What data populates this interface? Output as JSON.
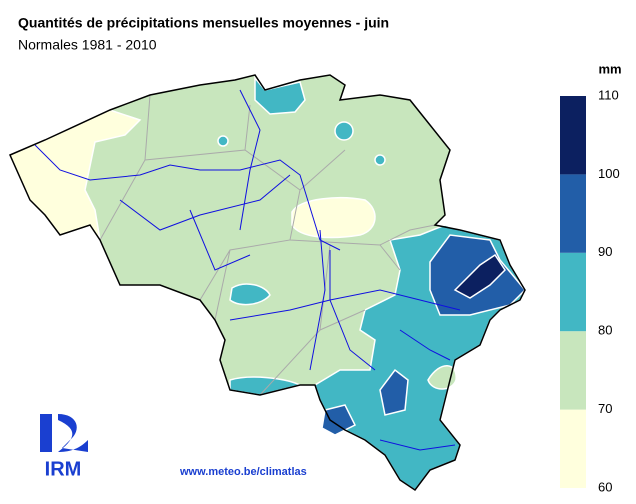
{
  "header": {
    "title": "Quantités de précipitations mensuelles moyennes - juin",
    "subtitle": "Normales 1981 - 2010"
  },
  "legend": {
    "unit": "mm",
    "ticks": [
      60,
      70,
      80,
      90,
      100,
      110
    ],
    "colors": [
      "#ffffdd",
      "#c8e6bd",
      "#42b7c4",
      "#225ea8",
      "#0c2060"
    ]
  },
  "footer": {
    "logo": "IRM",
    "url": "www.meteo.be/climatlas"
  }
}
